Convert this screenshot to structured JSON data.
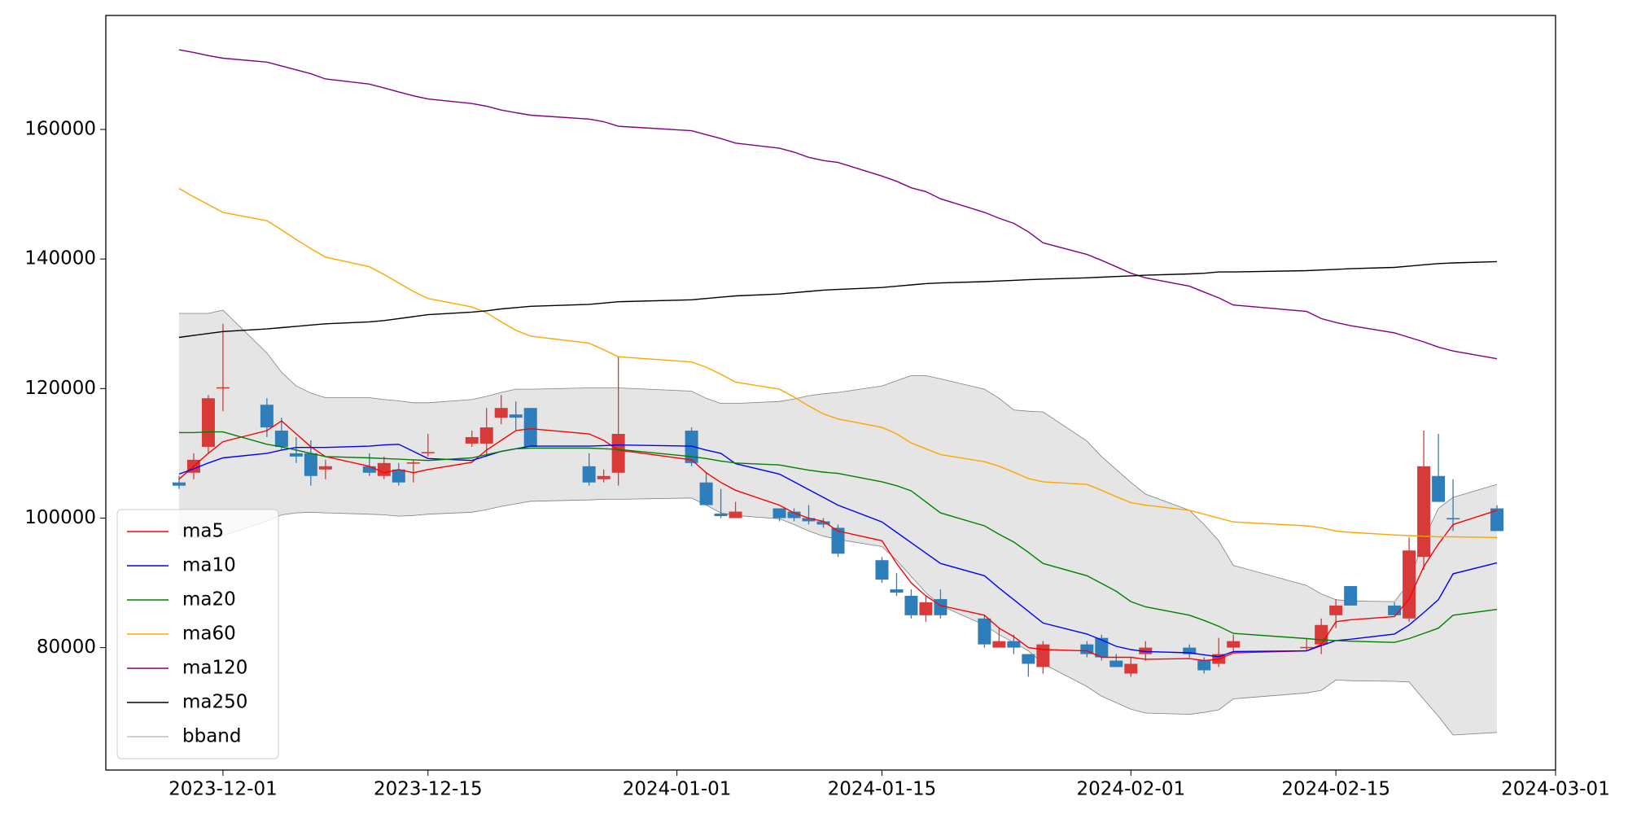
{
  "chart_data": {
    "type": "candlestick",
    "x": [
      "2023-11-28",
      "2023-11-29",
      "2023-11-30",
      "2023-12-01",
      "2023-12-04",
      "2023-12-05",
      "2023-12-06",
      "2023-12-07",
      "2023-12-08",
      "2023-12-11",
      "2023-12-12",
      "2023-12-13",
      "2023-12-14",
      "2023-12-15",
      "2023-12-18",
      "2023-12-19",
      "2023-12-20",
      "2023-12-21",
      "2023-12-22",
      "2023-12-26",
      "2023-12-27",
      "2023-12-28",
      "2024-01-02",
      "2024-01-03",
      "2024-01-04",
      "2024-01-05",
      "2024-01-08",
      "2024-01-09",
      "2024-01-10",
      "2024-01-11",
      "2024-01-12",
      "2024-01-15",
      "2024-01-16",
      "2024-01-17",
      "2024-01-18",
      "2024-01-19",
      "2024-01-22",
      "2024-01-23",
      "2024-01-24",
      "2024-01-25",
      "2024-01-26",
      "2024-01-29",
      "2024-01-30",
      "2024-01-31",
      "2024-02-01",
      "2024-02-02",
      "2024-02-05",
      "2024-02-06",
      "2024-02-07",
      "2024-02-08",
      "2024-02-13",
      "2024-02-14",
      "2024-02-15",
      "2024-02-16",
      "2024-02-19",
      "2024-02-20",
      "2024-02-21",
      "2024-02-22",
      "2024-02-23",
      "2024-02-26"
    ],
    "open": [
      105500,
      107000,
      111000,
      120000,
      117500,
      113500,
      110000,
      110000,
      107500,
      108000,
      106500,
      107500,
      108400,
      110000,
      111500,
      111500,
      115500,
      116000,
      117000,
      108000,
      106000,
      107000,
      113500,
      105500,
      100700,
      100000,
      101500,
      101000,
      100000,
      99500,
      98500,
      93500,
      89000,
      88000,
      85000,
      87500,
      84500,
      80000,
      81000,
      79000,
      77000,
      80500,
      81500,
      78000,
      76000,
      79000,
      80000,
      78000,
      77500,
      80000,
      80000,
      80500,
      85000,
      89500,
      86500,
      84500,
      94000,
      106500,
      100000,
      101500
    ],
    "high": [
      106500,
      110000,
      119000,
      130000,
      118500,
      115500,
      112500,
      112000,
      109000,
      110000,
      109500,
      108500,
      109000,
      113000,
      113500,
      117000,
      119000,
      118000,
      117000,
      110000,
      107500,
      125000,
      114000,
      107000,
      104500,
      102500,
      101500,
      101500,
      102000,
      100000,
      99000,
      94000,
      91500,
      89000,
      88000,
      89000,
      85000,
      83000,
      82000,
      79000,
      81000,
      81000,
      82000,
      79000,
      78500,
      81000,
      80500,
      78500,
      81500,
      82000,
      81500,
      84500,
      87500,
      89500,
      87000,
      97000,
      113500,
      113000,
      106000,
      102000
    ],
    "low": [
      104500,
      106000,
      110000,
      116500,
      112500,
      110500,
      108500,
      105000,
      106000,
      106500,
      106000,
      105000,
      105500,
      109500,
      111000,
      109500,
      114500,
      113500,
      111000,
      105000,
      105500,
      105000,
      108000,
      102000,
      100000,
      100000,
      99500,
      99500,
      99000,
      98500,
      94000,
      90000,
      88000,
      84500,
      84000,
      84500,
      80000,
      80000,
      79000,
      75500,
      76000,
      78500,
      78000,
      77000,
      75500,
      78000,
      78500,
      76000,
      77000,
      79500,
      79500,
      79000,
      83000,
      86500,
      85000,
      84000,
      92000,
      102500,
      98000,
      98000
    ],
    "close": [
      105000,
      109000,
      118500,
      120200,
      114000,
      111000,
      109500,
      106500,
      108000,
      107000,
      108500,
      105500,
      108600,
      110200,
      112500,
      114000,
      117000,
      115500,
      111000,
      105500,
      106500,
      113000,
      108500,
      102000,
      100300,
      101000,
      100000,
      100000,
      99500,
      99000,
      94500,
      90500,
      88500,
      85000,
      87000,
      85000,
      80500,
      81000,
      80000,
      77500,
      80500,
      79000,
      78500,
      77000,
      77500,
      80000,
      79000,
      76500,
      79000,
      81000,
      80100,
      83500,
      86500,
      86500,
      85000,
      95000,
      108000,
      102500,
      99800,
      98000
    ],
    "up_color": "#d83a3a",
    "down_color": "#2f7ebc",
    "series": [
      {
        "name": "ma5",
        "color": "#ff0000",
        "values": [
          106000,
          108000,
          110000,
          111800,
          113500,
          115000,
          113000,
          111000,
          109500,
          108000,
          107000,
          107500,
          107000,
          107500,
          108600,
          110500,
          112000,
          113500,
          113800,
          113000,
          112000,
          110500,
          109000,
          107000,
          105500,
          104300,
          102000,
          100800,
          100000,
          99500,
          98000,
          96500,
          93000,
          90000,
          88000,
          86500,
          85000,
          83000,
          81700,
          80000,
          79700,
          79500,
          78500,
          78500,
          78500,
          78200,
          78300,
          78000,
          78200,
          79200,
          79500,
          80500,
          84000,
          84300,
          84800,
          87500,
          92500,
          96000,
          99000,
          101200
        ]
      },
      {
        "name": "ma10",
        "color": "#0000ff",
        "values": [
          106800,
          107600,
          108500,
          109300,
          110000,
          110500,
          110900,
          110900,
          110900,
          111100,
          111300,
          111400,
          110300,
          109200,
          108900,
          109600,
          110300,
          110700,
          111100,
          111100,
          111200,
          111300,
          111100,
          110500,
          110000,
          108400,
          106800,
          105600,
          104400,
          103200,
          102000,
          99400,
          97800,
          96200,
          94600,
          93000,
          91100,
          89200,
          87400,
          85600,
          83800,
          82100,
          81200,
          80200,
          79700,
          79400,
          79200,
          78900,
          78600,
          79400,
          79500,
          80300,
          81100,
          81300,
          82100,
          83500,
          85400,
          87400,
          91400,
          93100
        ]
      },
      {
        "name": "ma20",
        "color": "#008000",
        "values": [
          113200,
          113200,
          113300,
          113300,
          111400,
          111000,
          110500,
          110000,
          109500,
          109300,
          109200,
          109100,
          109000,
          108900,
          109300,
          109800,
          110300,
          110700,
          110800,
          110800,
          110700,
          110600,
          109500,
          109200,
          108800,
          108500,
          108200,
          107800,
          107400,
          107100,
          106900,
          105600,
          105000,
          104200,
          102500,
          100800,
          98800,
          97500,
          96300,
          94700,
          93000,
          91100,
          89900,
          88700,
          87100,
          86300,
          85000,
          84200,
          83300,
          82200,
          81400,
          81200,
          81100,
          81000,
          80800,
          81400,
          82200,
          83000,
          85000,
          85900
        ]
      },
      {
        "name": "ma60",
        "color": "#ffa500",
        "values": [
          150900,
          149600,
          148400,
          147200,
          145900,
          144500,
          143000,
          141600,
          140300,
          138800,
          137600,
          136300,
          135000,
          133900,
          132600,
          131700,
          130300,
          129000,
          128100,
          127000,
          126000,
          124900,
          124100,
          123300,
          122200,
          121000,
          119900,
          118700,
          117300,
          116100,
          115300,
          114000,
          113000,
          111600,
          110700,
          109800,
          108700,
          108000,
          107100,
          106100,
          105600,
          105200,
          104300,
          103300,
          102400,
          102000,
          101200,
          100600,
          100000,
          99400,
          98800,
          98500,
          98000,
          97800,
          97400,
          97300,
          97200,
          97100,
          97100,
          97000
        ]
      },
      {
        "name": "ma120",
        "color": "#800080",
        "values": [
          172300,
          171900,
          171400,
          171000,
          170400,
          169800,
          169200,
          168600,
          167800,
          167000,
          166400,
          165800,
          165200,
          164700,
          164000,
          163600,
          163000,
          162600,
          162200,
          161600,
          161200,
          160500,
          159800,
          159200,
          158600,
          157900,
          157100,
          156500,
          155700,
          155200,
          154900,
          152800,
          152000,
          151000,
          150400,
          149300,
          147200,
          146300,
          145500,
          144200,
          142500,
          140700,
          139800,
          138800,
          137800,
          137100,
          135800,
          134900,
          134000,
          132900,
          131900,
          130800,
          130200,
          129700,
          128600,
          127900,
          127200,
          126400,
          125800,
          124600
        ]
      },
      {
        "name": "ma250",
        "color": "#000000",
        "values": [
          127900,
          128200,
          128500,
          128800,
          129200,
          129400,
          129600,
          129800,
          130000,
          130300,
          130500,
          130800,
          131100,
          131400,
          131800,
          132000,
          132300,
          132500,
          132700,
          133000,
          133200,
          133400,
          133700,
          133900,
          134100,
          134300,
          134600,
          134800,
          135000,
          135200,
          135300,
          135600,
          135800,
          136000,
          136200,
          136300,
          136500,
          136600,
          136700,
          136800,
          136900,
          137100,
          137200,
          137300,
          137400,
          137500,
          137700,
          137800,
          138000,
          138000,
          138200,
          138300,
          138400,
          138500,
          138700,
          138900,
          139100,
          139300,
          139400,
          139600
        ]
      }
    ],
    "band": {
      "name": "bband",
      "color": "#808080",
      "fill": "#e5e5e5",
      "upper": [
        131600,
        131600,
        131600,
        132100,
        125500,
        122500,
        120400,
        119300,
        118600,
        118600,
        118300,
        118100,
        117800,
        117800,
        118300,
        118800,
        119400,
        119900,
        119900,
        120100,
        120100,
        120100,
        119600,
        118500,
        117700,
        117700,
        118000,
        118400,
        118900,
        119200,
        119400,
        120400,
        121200,
        122000,
        122000,
        121500,
        119900,
        118500,
        116700,
        116500,
        116400,
        111900,
        109500,
        107500,
        105500,
        103700,
        101200,
        99000,
        96500,
        92700,
        89600,
        88300,
        87400,
        87200,
        87100,
        90000,
        96700,
        101500,
        103200,
        105200
      ],
      "lower": [
        97500,
        97000,
        96800,
        97300,
        99500,
        100500,
        100800,
        100900,
        100800,
        100600,
        100500,
        100300,
        100400,
        100600,
        100900,
        101300,
        101800,
        102200,
        102600,
        102800,
        102900,
        102900,
        103100,
        102000,
        100800,
        100400,
        99900,
        99000,
        98000,
        97200,
        96700,
        95600,
        93500,
        91000,
        88500,
        86500,
        83500,
        82000,
        80800,
        79500,
        77500,
        74000,
        72500,
        71500,
        70500,
        69900,
        69700,
        70000,
        70400,
        72100,
        73000,
        73400,
        75000,
        74900,
        74800,
        74700,
        72000,
        69400,
        66500,
        66900
      ]
    },
    "xlim": [
      "2023-11-23",
      "2024-03-01"
    ],
    "xticks": [
      "2023-12-01",
      "2023-12-15",
      "2024-01-01",
      "2024-01-15",
      "2024-02-01",
      "2024-02-15",
      "2024-03-01"
    ],
    "ylim": [
      61100,
      177600
    ],
    "yticks": [
      80000,
      100000,
      120000,
      140000,
      160000
    ],
    "legend": "lower left"
  }
}
